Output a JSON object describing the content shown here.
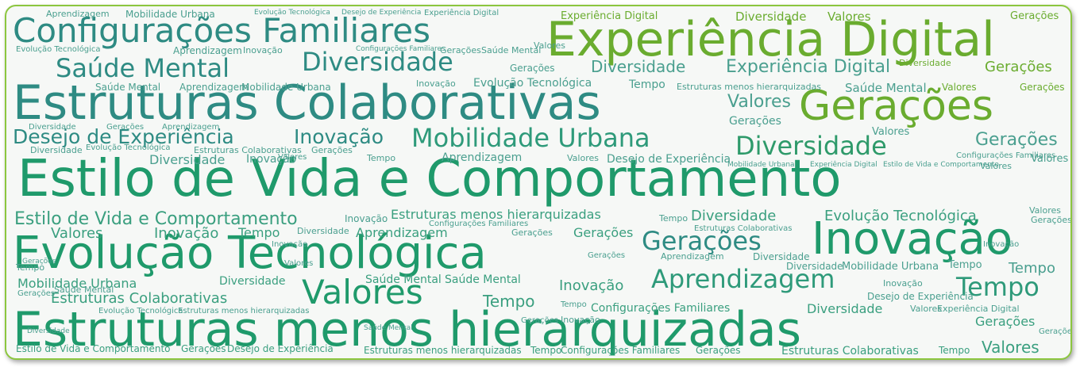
{
  "colors": {
    "border": "#8cc63f",
    "teal": "#2e8b83",
    "green": "#1f9a6b",
    "lime": "#6aac2f",
    "light": "#55a07e"
  },
  "words": {
    "config_familiares": "Configurações Familiares",
    "experiencia_digital": "Experiência Digital",
    "saude_mental": "Saúde Mental",
    "diversidade": "Diversidade",
    "estruturas_colaborativas": "Estruturas Colaborativas",
    "geracoes": "Gerações",
    "desejo_experiencia": "Desejo de Experiência",
    "inovacao": "Inovação",
    "mobilidade_urbana": "Mobilidade Urbana",
    "estilo_vida": "Estilo de Vida e Comportamento",
    "evolucao_tecnologica": "Evolução Tecnológica",
    "valores": "Valores",
    "aprendizagem": "Aprendizagem",
    "tempo": "Tempo",
    "estruturas_menos": "Estruturas menos hierarquizadas"
  }
}
